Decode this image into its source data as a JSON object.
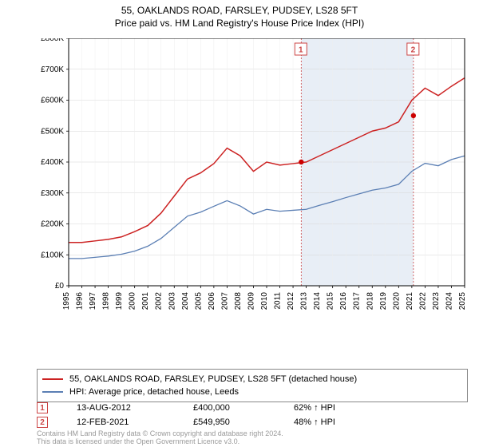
{
  "title": {
    "line1": "55, OAKLANDS ROAD, FARSLEY, PUDSEY, LS28 5FT",
    "line2": "Price paid vs. HM Land Registry's House Price Index (HPI)",
    "fontsize": 12,
    "color": "#000000"
  },
  "chart": {
    "type": "line",
    "background_color": "#ffffff",
    "plot_border_color": "#000000",
    "grid_color": "#d6d6d6",
    "grid_minor_color": "#eeeeee",
    "yaxis": {
      "min": 0,
      "max": 800000,
      "tick_step": 100000,
      "tick_labels": [
        "£0",
        "£100K",
        "£200K",
        "£300K",
        "£400K",
        "£500K",
        "£600K",
        "£700K",
        "£800K"
      ],
      "label_fontsize": 10,
      "label_color": "#000000"
    },
    "xaxis": {
      "min": 1995,
      "max": 2025,
      "tick_step": 1,
      "tick_labels": [
        "1995",
        "1996",
        "1997",
        "1998",
        "1999",
        "2000",
        "2001",
        "2002",
        "2003",
        "2004",
        "2005",
        "2006",
        "2007",
        "2008",
        "2009",
        "2010",
        "2011",
        "2012",
        "2013",
        "2014",
        "2015",
        "2016",
        "2017",
        "2018",
        "2019",
        "2020",
        "2021",
        "2022",
        "2023",
        "2024",
        "2025"
      ],
      "label_fontsize": 10,
      "label_color": "#000000",
      "label_rotation": -90
    },
    "shaded_region": {
      "x_start": 2012.62,
      "x_end": 2021.12,
      "fill_color": "#e8eef6",
      "border_color": "#cc4444",
      "border_dash": "2,2"
    },
    "event_markers": [
      {
        "id": "1",
        "x": 2012.62,
        "label_color": "#cc4444",
        "dot_value": 400000,
        "dot_color": "#cc0000"
      },
      {
        "id": "2",
        "x": 2021.12,
        "label_color": "#cc4444",
        "dot_value": 549950,
        "dot_color": "#cc0000"
      }
    ],
    "series": [
      {
        "name": "property",
        "label": "55, OAKLANDS ROAD, FARSLEY, PUDSEY, LS28 5FT (detached house)",
        "color": "#cc2222",
        "line_width": 1.5,
        "points": [
          [
            1995,
            140000
          ],
          [
            1996,
            140000
          ],
          [
            1997,
            145000
          ],
          [
            1998,
            150000
          ],
          [
            1999,
            158000
          ],
          [
            2000,
            175000
          ],
          [
            2001,
            195000
          ],
          [
            2002,
            235000
          ],
          [
            2003,
            290000
          ],
          [
            2004,
            345000
          ],
          [
            2005,
            365000
          ],
          [
            2006,
            395000
          ],
          [
            2007,
            445000
          ],
          [
            2008,
            420000
          ],
          [
            2009,
            370000
          ],
          [
            2010,
            400000
          ],
          [
            2011,
            390000
          ],
          [
            2012,
            395000
          ],
          [
            2013,
            400000
          ],
          [
            2014,
            420000
          ],
          [
            2015,
            440000
          ],
          [
            2016,
            460000
          ],
          [
            2017,
            480000
          ],
          [
            2018,
            500000
          ],
          [
            2019,
            510000
          ],
          [
            2020,
            530000
          ],
          [
            2021,
            600000
          ],
          [
            2022,
            639000
          ],
          [
            2023,
            615000
          ],
          [
            2024,
            645000
          ],
          [
            2025,
            672000
          ]
        ]
      },
      {
        "name": "hpi",
        "label": "HPI: Average price, detached house, Leeds",
        "color": "#5b7fb4",
        "line_width": 1.3,
        "points": [
          [
            1995,
            88000
          ],
          [
            1996,
            88000
          ],
          [
            1997,
            92000
          ],
          [
            1998,
            96000
          ],
          [
            1999,
            102000
          ],
          [
            2000,
            112000
          ],
          [
            2001,
            128000
          ],
          [
            2002,
            153000
          ],
          [
            2003,
            189000
          ],
          [
            2004,
            225000
          ],
          [
            2005,
            238000
          ],
          [
            2006,
            257000
          ],
          [
            2007,
            275000
          ],
          [
            2008,
            258000
          ],
          [
            2009,
            232000
          ],
          [
            2010,
            247000
          ],
          [
            2011,
            241000
          ],
          [
            2012,
            244000
          ],
          [
            2013,
            247000
          ],
          [
            2014,
            260000
          ],
          [
            2015,
            272000
          ],
          [
            2016,
            285000
          ],
          [
            2017,
            297000
          ],
          [
            2018,
            309000
          ],
          [
            2019,
            316000
          ],
          [
            2020,
            328000
          ],
          [
            2021,
            370000
          ],
          [
            2022,
            396000
          ],
          [
            2023,
            388000
          ],
          [
            2024,
            408000
          ],
          [
            2025,
            420000
          ]
        ]
      }
    ]
  },
  "legend": {
    "border_color": "#888888",
    "fontsize": 11,
    "items": [
      {
        "color": "#cc2222",
        "label": "55, OAKLANDS ROAD, FARSLEY, PUDSEY, LS28 5FT (detached house)"
      },
      {
        "color": "#5b7fb4",
        "label": "HPI: Average price, detached house, Leeds"
      }
    ]
  },
  "events": [
    {
      "id": "1",
      "date": "13-AUG-2012",
      "price": "£400,000",
      "delta": "62% ↑ HPI",
      "marker_border": "#cc4444",
      "marker_text": "#cc4444"
    },
    {
      "id": "2",
      "date": "12-FEB-2021",
      "price": "£549,950",
      "delta": "48% ↑ HPI",
      "marker_border": "#cc4444",
      "marker_text": "#cc4444"
    }
  ],
  "footer": {
    "line1": "Contains HM Land Registry data © Crown copyright and database right 2024.",
    "line2": "This data is licensed under the Open Government Licence v3.0.",
    "fontsize": 9,
    "color": "#9a9a9a"
  }
}
